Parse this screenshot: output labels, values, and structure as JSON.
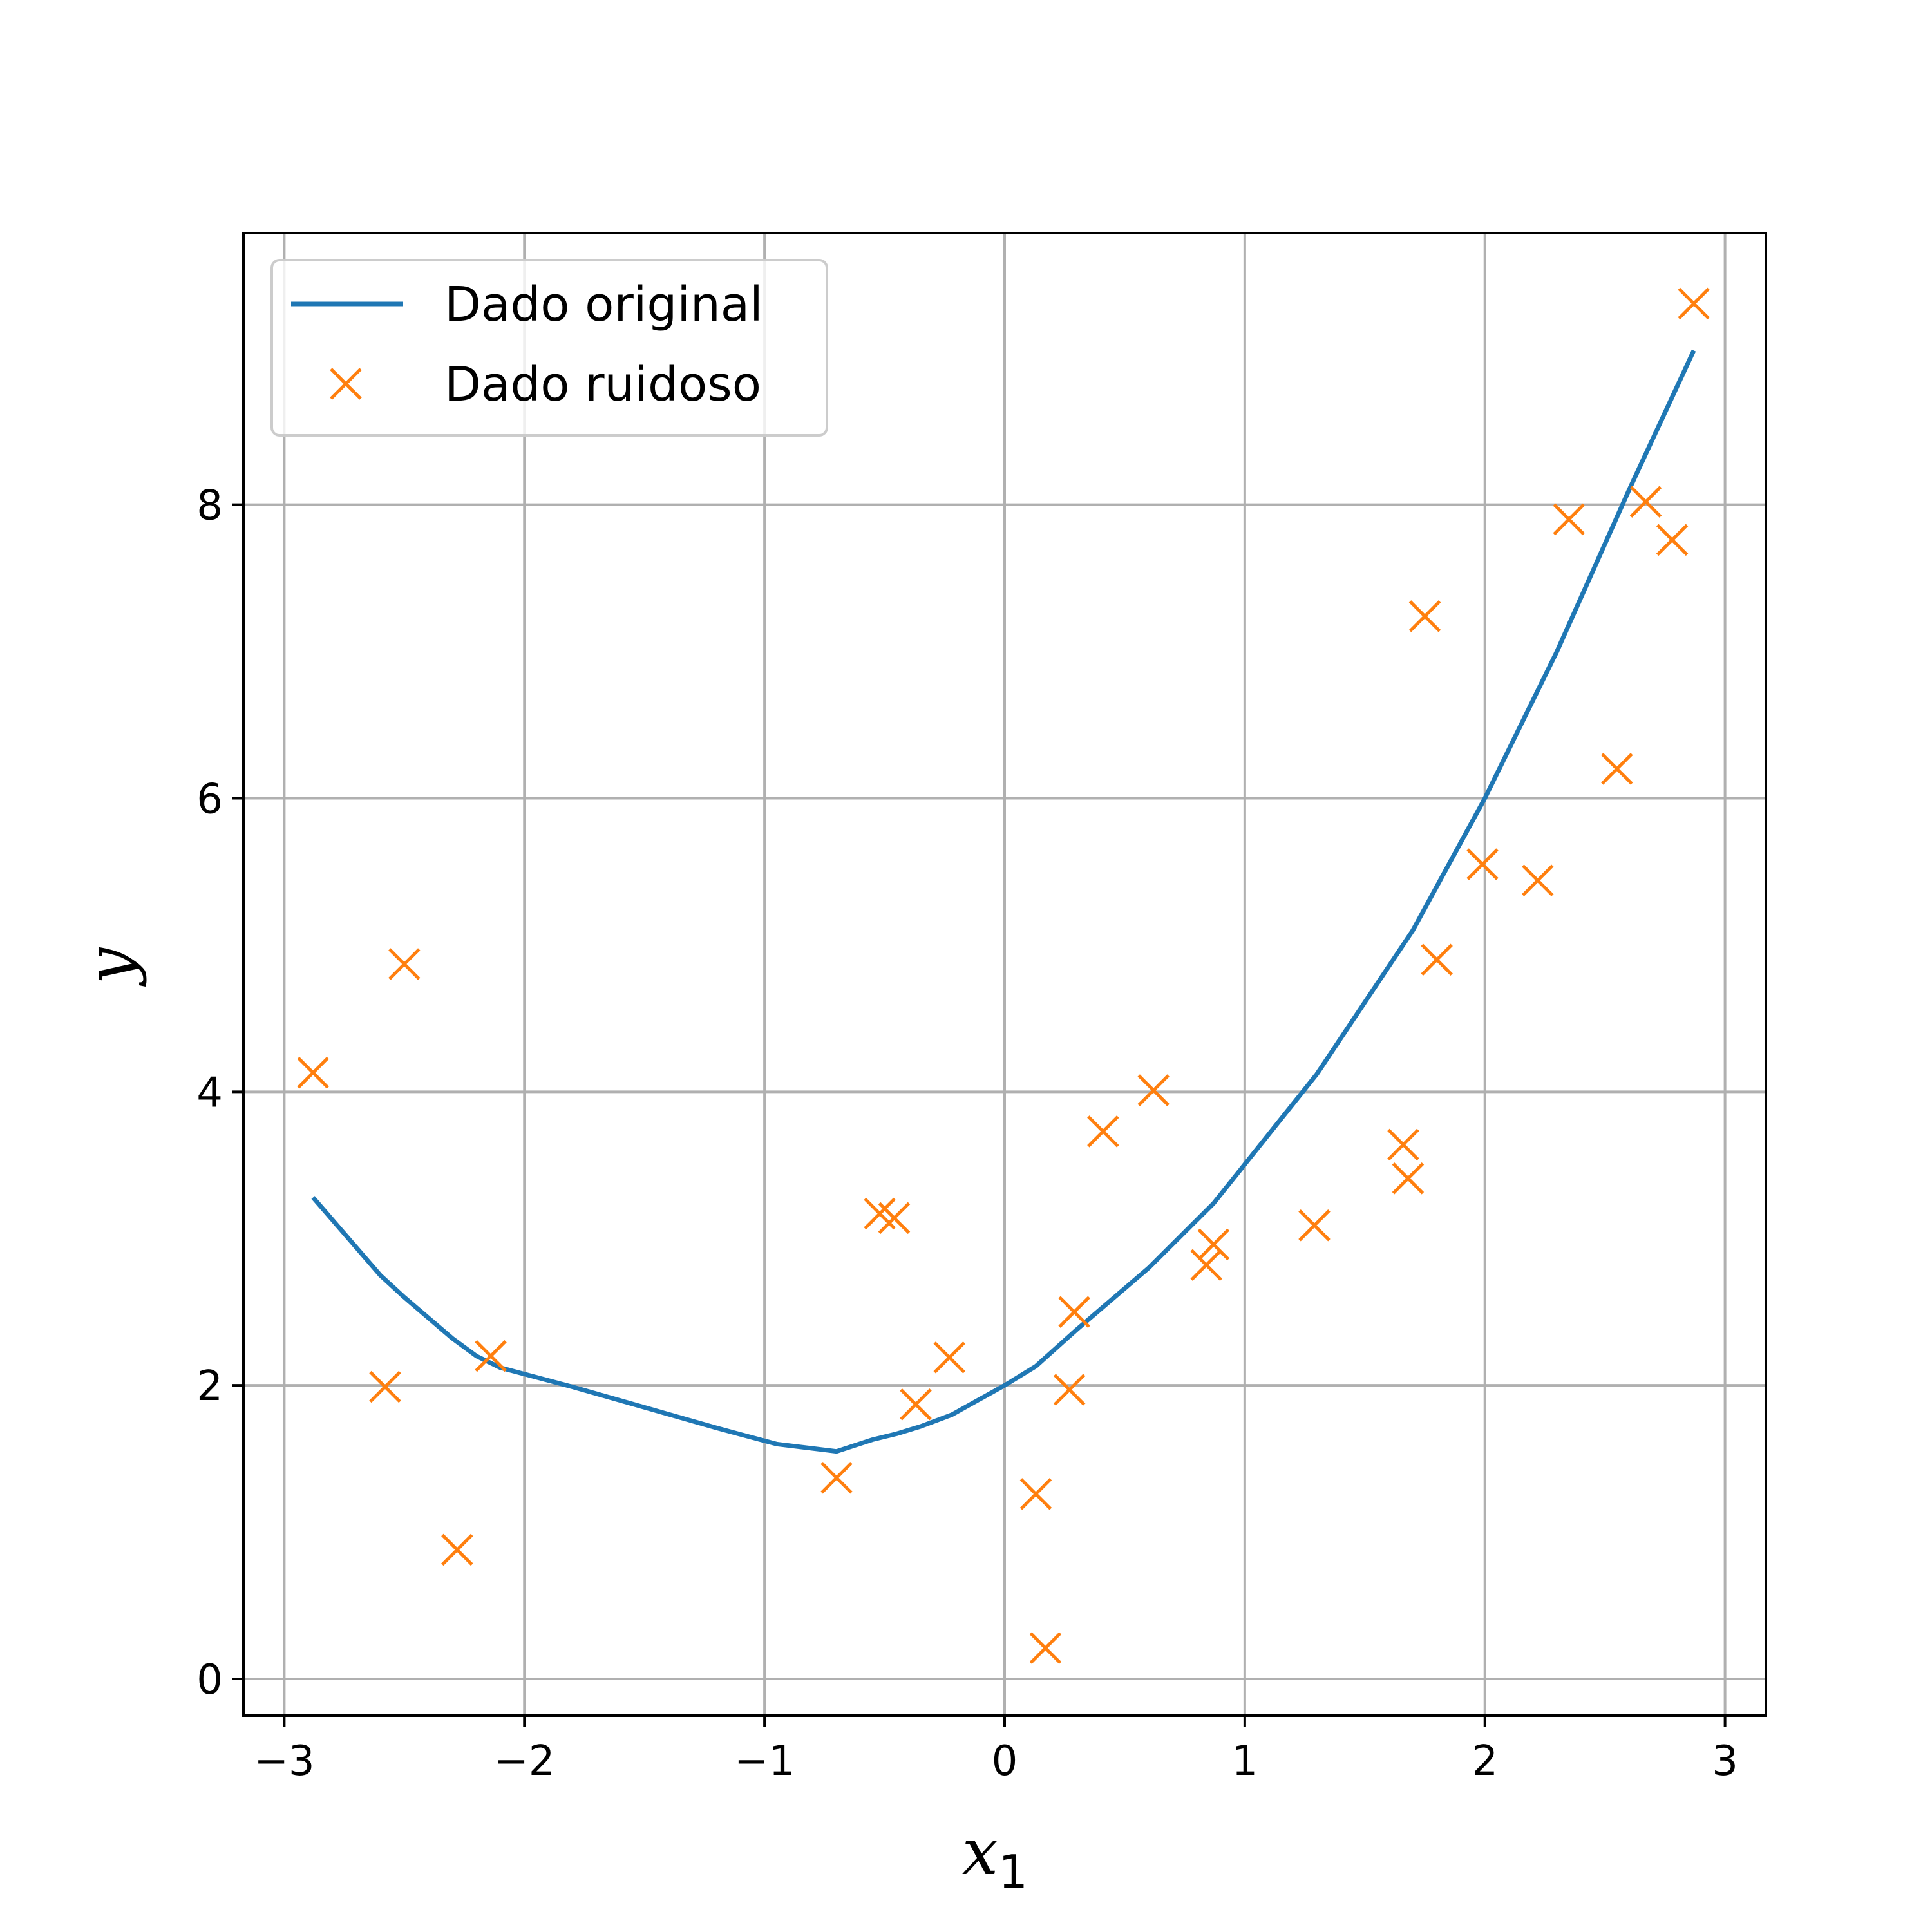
{
  "chart_data": {
    "type": "line",
    "title": "",
    "xlabel": "x",
    "xlabel_sub": "1",
    "ylabel": "y",
    "xlim": [
      -3.17,
      3.17
    ],
    "ylim": [
      -0.25,
      9.85
    ],
    "xticks": [
      -3,
      -2,
      -1,
      0,
      1,
      2,
      3
    ],
    "xtick_labels": [
      "−3",
      "−2",
      "−1",
      "0",
      "1",
      "2",
      "3"
    ],
    "yticks": [
      0,
      2,
      4,
      6,
      8
    ],
    "ytick_labels": [
      "0",
      "2",
      "4",
      "6",
      "8"
    ],
    "grid": true,
    "legend_position": "top-left",
    "colors": {
      "line": "#1f77b4",
      "markers": "#ff7f0e",
      "grid": "#b0b0b0"
    },
    "series": [
      {
        "name": "Dado original",
        "kind": "line",
        "x": [
          -2.88,
          -2.6,
          -2.5,
          -2.3,
          -2.2,
          -2.1,
          -1.8,
          -1.5,
          -1.2,
          -0.95,
          -0.7,
          -0.55,
          -0.45,
          -0.35,
          -0.22,
          0.0,
          0.13,
          0.3,
          0.6,
          0.87,
          1.3,
          1.7,
          2.0,
          2.3,
          2.6,
          2.87
        ],
        "y": [
          3.28,
          2.75,
          2.6,
          2.32,
          2.2,
          2.12,
          1.99,
          1.85,
          1.71,
          1.6,
          1.55,
          1.63,
          1.67,
          1.72,
          1.8,
          2.0,
          2.13,
          2.38,
          2.8,
          3.24,
          4.12,
          5.1,
          6.0,
          7.0,
          8.1,
          9.05
        ]
      },
      {
        "name": "Dado ruidoso",
        "kind": "scatter",
        "marker": "x",
        "x": [
          -2.88,
          -2.5,
          -2.58,
          -2.28,
          -2.14,
          -0.7,
          -0.52,
          -0.46,
          -0.37,
          -0.23,
          0.13,
          0.17,
          0.27,
          0.29,
          0.41,
          0.62,
          0.84,
          0.87,
          1.29,
          1.66,
          1.68,
          1.75,
          1.8,
          1.99,
          2.22,
          2.35,
          2.55,
          2.67,
          2.78,
          2.87
        ],
        "y": [
          4.13,
          4.87,
          1.99,
          0.88,
          2.2,
          1.37,
          3.17,
          3.14,
          1.87,
          2.19,
          1.26,
          0.21,
          1.97,
          2.5,
          3.73,
          4.01,
          2.82,
          2.96,
          3.09,
          3.64,
          3.41,
          7.24,
          4.9,
          5.55,
          5.44,
          7.9,
          6.2,
          8.02,
          7.76,
          9.37
        ]
      }
    ]
  }
}
